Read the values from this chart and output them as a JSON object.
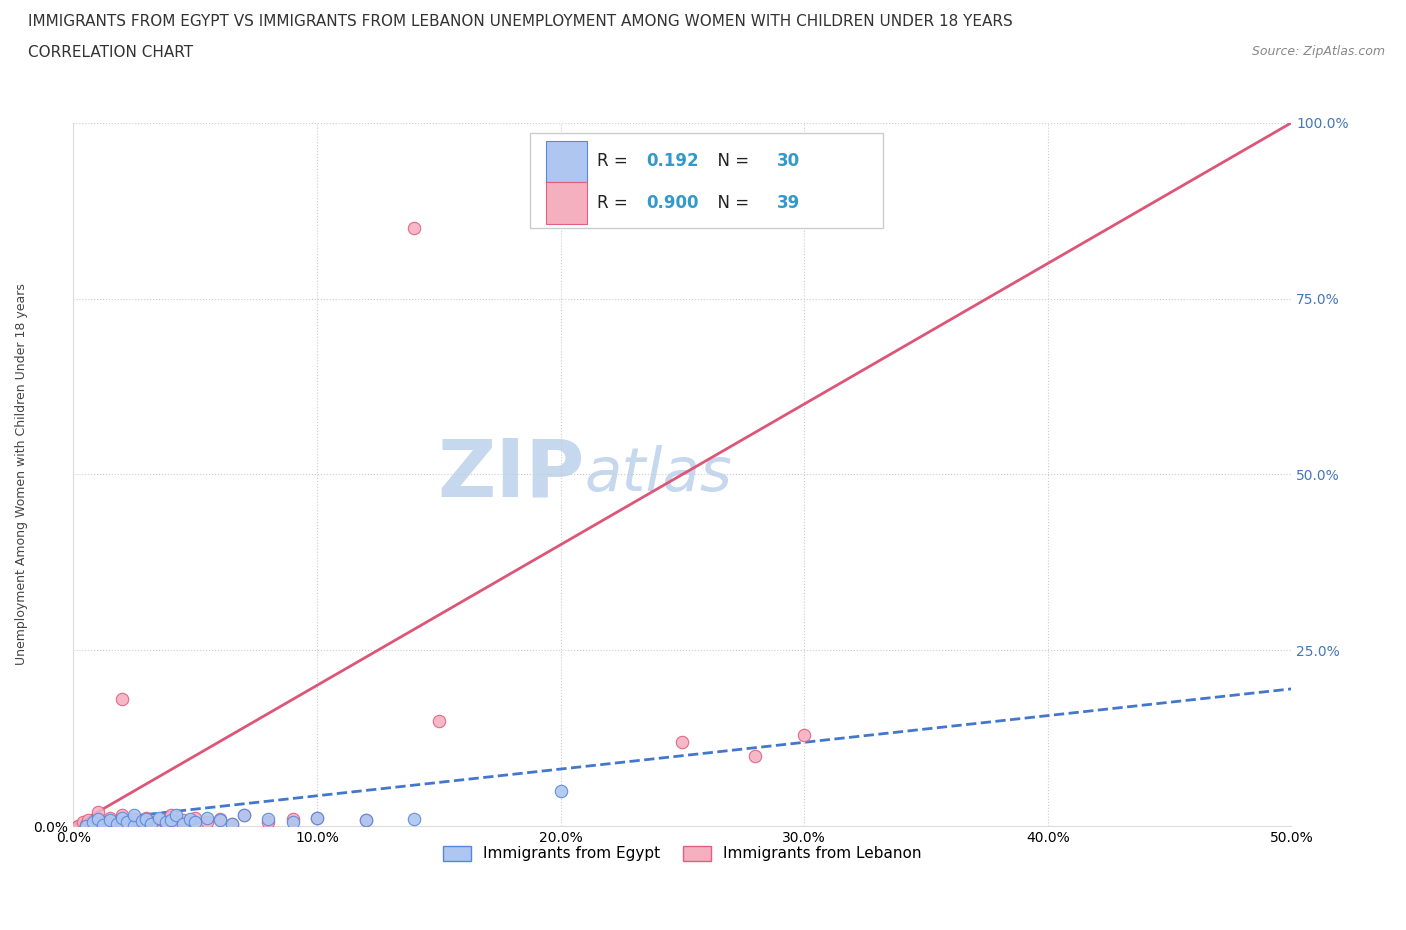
{
  "title_line1": "IMMIGRANTS FROM EGYPT VS IMMIGRANTS FROM LEBANON UNEMPLOYMENT AMONG WOMEN WITH CHILDREN UNDER 18 YEARS",
  "title_line2": "CORRELATION CHART",
  "source": "Source: ZipAtlas.com",
  "xlabel_legend": "Immigrants from Egypt",
  "xlabel_legend2": "Immigrants from Lebanon",
  "ylabel": "Unemployment Among Women with Children Under 18 years",
  "xlim": [
    0,
    0.5
  ],
  "ylim": [
    0,
    1.0
  ],
  "xtick_labels": [
    "0.0%",
    "10.0%",
    "20.0%",
    "30.0%",
    "40.0%",
    "50.0%"
  ],
  "xtick_vals": [
    0,
    0.1,
    0.2,
    0.3,
    0.4,
    0.5
  ],
  "ytick_labels": [
    "0.0%",
    "25.0%",
    "50.0%",
    "75.0%",
    "100.0%"
  ],
  "ytick_vals": [
    0,
    0.25,
    0.5,
    0.75,
    1.0
  ],
  "ytick_right_labels": [
    "100.0%",
    "75.0%",
    "50.0%",
    "25.0%",
    "0.0%"
  ],
  "ytick_right_vals": [
    1.0,
    0.75,
    0.5,
    0.25,
    0.0
  ],
  "egypt_color": "#aec6f0",
  "egypt_edge_color": "#5588dd",
  "lebanon_color": "#f5b0c0",
  "lebanon_edge_color": "#e06080",
  "egypt_R": 0.192,
  "egypt_N": 30,
  "lebanon_R": 0.9,
  "lebanon_N": 39,
  "egypt_line_color": "#4477cc",
  "lebanon_line_color": "#dd5577",
  "watermark_zip": "ZIP",
  "watermark_atlas": "atlas",
  "watermark_color": "#c5d8ee",
  "background_color": "#ffffff",
  "grid_color": "#cccccc",
  "egypt_scatter_x": [
    0.005,
    0.008,
    0.01,
    0.012,
    0.015,
    0.018,
    0.02,
    0.022,
    0.025,
    0.025,
    0.028,
    0.03,
    0.032,
    0.035,
    0.038,
    0.04,
    0.042,
    0.045,
    0.048,
    0.05,
    0.055,
    0.06,
    0.065,
    0.07,
    0.08,
    0.09,
    0.1,
    0.12,
    0.14,
    0.2
  ],
  "egypt_scatter_y": [
    0.0,
    0.005,
    0.01,
    0.002,
    0.008,
    0.003,
    0.012,
    0.005,
    0.0,
    0.015,
    0.007,
    0.01,
    0.003,
    0.012,
    0.005,
    0.008,
    0.015,
    0.003,
    0.01,
    0.005,
    0.012,
    0.008,
    0.003,
    0.015,
    0.01,
    0.005,
    0.012,
    0.008,
    0.01,
    0.05
  ],
  "lebanon_scatter_x": [
    0.002,
    0.004,
    0.005,
    0.006,
    0.008,
    0.01,
    0.012,
    0.015,
    0.018,
    0.02,
    0.022,
    0.025,
    0.028,
    0.03,
    0.032,
    0.035,
    0.038,
    0.04,
    0.042,
    0.045,
    0.05,
    0.055,
    0.06,
    0.065,
    0.07,
    0.08,
    0.09,
    0.1,
    0.12,
    0.15,
    0.25,
    0.28,
    0.3,
    0.14,
    0.02,
    0.025,
    0.03,
    0.015,
    0.01
  ],
  "lebanon_scatter_y": [
    0.0,
    0.005,
    0.002,
    0.008,
    0.003,
    0.01,
    0.005,
    0.012,
    0.003,
    0.015,
    0.005,
    0.008,
    0.003,
    0.012,
    0.005,
    0.01,
    0.003,
    0.015,
    0.005,
    0.008,
    0.012,
    0.005,
    0.01,
    0.003,
    0.015,
    0.005,
    0.01,
    0.012,
    0.008,
    0.15,
    0.12,
    0.1,
    0.13,
    0.85,
    0.18,
    0.01,
    0.005,
    0.003,
    0.02
  ],
  "egypt_line_x": [
    0.0,
    0.5
  ],
  "egypt_line_y": [
    0.005,
    0.195
  ],
  "lebanon_line_x": [
    0.0,
    0.5
  ],
  "lebanon_line_y": [
    0.0,
    1.0
  ],
  "legend_R_color": "#3399cc",
  "legend_N_color": "#3399cc",
  "title_fontsize": 11,
  "subtitle_fontsize": 11,
  "axis_label_fontsize": 9,
  "tick_fontsize": 10,
  "legend_fontsize": 12,
  "source_fontsize": 9,
  "marker_size": 80
}
